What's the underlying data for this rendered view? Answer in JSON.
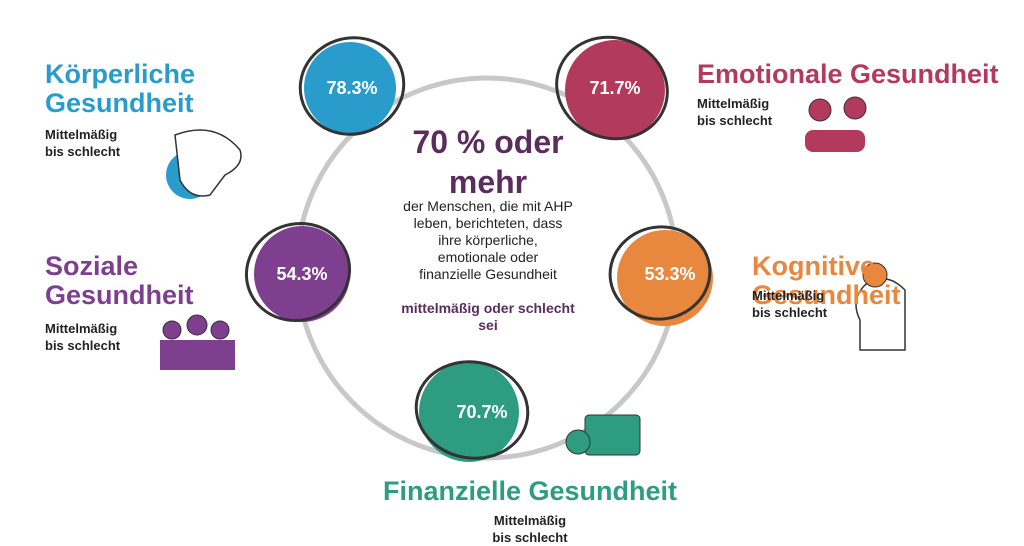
{
  "center": {
    "headline": "70 % oder\nmehr",
    "text": "der Menschen, die mit AHP\nleben, berichteten, dass\nihre körperliche,\nemotionale oder\nfinanzielle Gesundheit",
    "emphasis": "mittelmäßig oder schlecht\nsei"
  },
  "nodes": [
    {
      "title": "Körperliche\nGesundheit",
      "value_label": "78.3%",
      "subtitle": "Mittelmäßig\nbis schlecht"
    },
    {
      "title": "Emotionale Gesundheit",
      "value_label": "71.7%",
      "subtitle": "Mittelmäßig\nbis schlecht"
    },
    {
      "title": "Kognitive Gesundheit",
      "value_label": "53.3%",
      "subtitle": "Mittelmäßig\nbis schlecht"
    },
    {
      "title": "Finanzielle Gesundheit",
      "value_label": "70.7%",
      "subtitle": "Mittelmäßig\nbis schlecht"
    },
    {
      "title": "Soziale\nGesundheit",
      "value_label": "54.3%",
      "subtitle": "Mittelmäßig\nbis schlecht"
    }
  ]
}
